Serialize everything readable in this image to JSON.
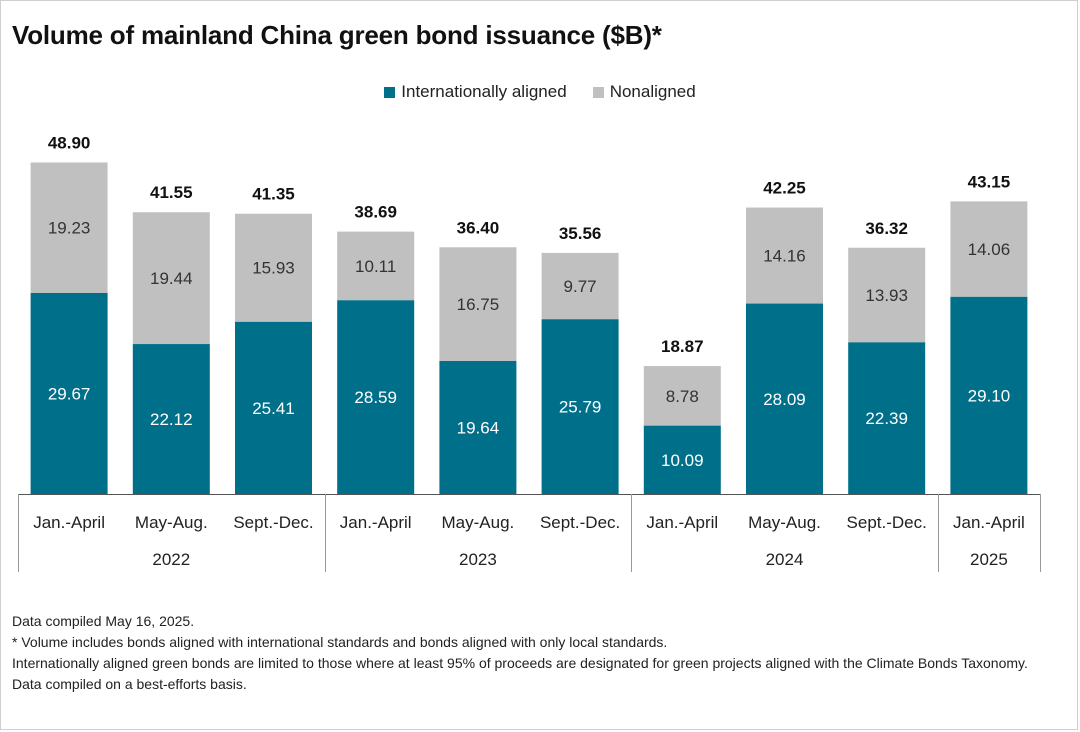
{
  "title": "Volume of mainland China green bond issuance ($B)*",
  "colors": {
    "aligned": "#00708a",
    "nonaligned": "#c0c0c0"
  },
  "chart_data": {
    "type": "bar",
    "stacked": true,
    "title": "Volume of mainland China green bond issuance ($B)*",
    "legend_position": "top-center",
    "categories": [
      "Jan.-April",
      "May-Aug.",
      "Sept.-Dec.",
      "Jan.-April",
      "May-Aug.",
      "Sept.-Dec.",
      "Jan.-April",
      "May-Aug.",
      "Sept.-Dec.",
      "Jan.-April"
    ],
    "groups": [
      {
        "label": "2022",
        "count": 3
      },
      {
        "label": "2023",
        "count": 3
      },
      {
        "label": "2024",
        "count": 3
      },
      {
        "label": "2025",
        "count": 1
      }
    ],
    "series": [
      {
        "name": "Internationally aligned",
        "values": [
          29.67,
          22.12,
          25.41,
          28.59,
          19.64,
          25.79,
          10.09,
          28.09,
          22.39,
          29.1
        ],
        "labels": [
          "29.67",
          "22.12",
          "25.41",
          "28.59",
          "19.64",
          "25.79",
          "10.09",
          "28.09",
          "22.39",
          "29.10"
        ]
      },
      {
        "name": "Nonaligned",
        "values": [
          19.23,
          19.44,
          15.93,
          10.11,
          16.75,
          9.77,
          8.78,
          14.16,
          13.93,
          14.06
        ],
        "labels": [
          "19.23",
          "19.44",
          "15.93",
          "10.11",
          "16.75",
          "9.77",
          "8.78",
          "14.16",
          "13.93",
          "14.06"
        ]
      }
    ],
    "totals": [
      48.9,
      41.55,
      41.35,
      38.69,
      36.4,
      35.56,
      18.87,
      42.25,
      36.32,
      43.15
    ],
    "total_labels": [
      "48.90",
      "41.55",
      "41.35",
      "38.69",
      "36.40",
      "35.56",
      "18.87",
      "42.25",
      "36.32",
      "43.15"
    ],
    "ylim": [
      0,
      50
    ],
    "grid": false
  },
  "footnotes": [
    "Data compiled May 16, 2025.",
    "* Volume includes bonds aligned with international standards and bonds aligned with only local standards.",
    "Internationally aligned green bonds are limited to those where at least 95% of proceeds are designated for green projects aligned with the Climate Bonds Taxonomy.",
    "Data compiled on a best-efforts basis."
  ]
}
